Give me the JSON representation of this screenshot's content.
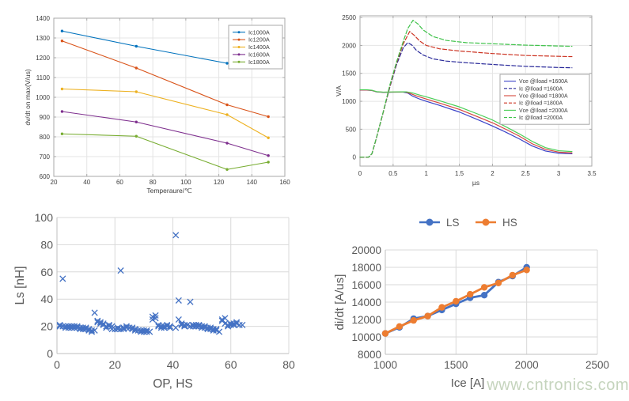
{
  "watermark": {
    "text": "www.cntronics.com",
    "color": "#c5d4bd"
  },
  "chart_data": [
    {
      "id": "dvdt",
      "type": "line",
      "title": "",
      "xlabel": "Temperaure/℃",
      "ylabel": "dv/dt on max(V/us)",
      "xlim": [
        20,
        160
      ],
      "ylim": [
        600,
        1400
      ],
      "xticks": [
        20,
        40,
        60,
        80,
        100,
        120,
        140,
        160
      ],
      "yticks": [
        600,
        700,
        800,
        900,
        1000,
        1100,
        1200,
        1300,
        1400
      ],
      "grid": true,
      "legend_position": "top-right-inside",
      "x": [
        25,
        70,
        125,
        150
      ],
      "series": [
        {
          "name": "Ic1000A",
          "color": "#0072BD",
          "values": [
            1335,
            1258,
            1172,
            1152
          ]
        },
        {
          "name": "Ic1200A",
          "color": "#D95319",
          "values": [
            1285,
            1148,
            962,
            902
          ]
        },
        {
          "name": "Ic1400A",
          "color": "#EDB120",
          "values": [
            1042,
            1028,
            912,
            795
          ]
        },
        {
          "name": "Ic1600A",
          "color": "#7E2F8E",
          "values": [
            928,
            875,
            768,
            705
          ]
        },
        {
          "name": "Ic1800A",
          "color": "#77AC30",
          "values": [
            815,
            803,
            635,
            672
          ]
        }
      ]
    },
    {
      "id": "switching",
      "type": "line",
      "title": "",
      "xlabel": "µs",
      "ylabel": "V/A",
      "xlim": [
        0,
        3.5
      ],
      "ylim": [
        0,
        2500
      ],
      "xticks": [
        0,
        0.5,
        1,
        1.5,
        2,
        2.5,
        3,
        3.5
      ],
      "yticks": [
        0,
        500,
        1000,
        1500,
        2000,
        2500
      ],
      "grid": true,
      "legend_position": "middle-right-inside",
      "series": [
        {
          "name": "Vce @Iload =1600A",
          "color": "#3a42c8",
          "dash": false,
          "points": [
            [
              0,
              1200
            ],
            [
              0.1,
              1200
            ],
            [
              0.18,
              1193
            ],
            [
              0.25,
              1168
            ],
            [
              0.35,
              1160
            ],
            [
              0.5,
              1163
            ],
            [
              0.65,
              1165
            ],
            [
              0.72,
              1148
            ],
            [
              0.8,
              1090
            ],
            [
              0.9,
              1040
            ],
            [
              1.0,
              1000
            ],
            [
              1.2,
              928
            ],
            [
              1.5,
              808
            ],
            [
              1.8,
              660
            ],
            [
              2.0,
              558
            ],
            [
              2.2,
              448
            ],
            [
              2.4,
              330
            ],
            [
              2.6,
              200
            ],
            [
              2.8,
              110
            ],
            [
              3.0,
              70
            ],
            [
              3.2,
              60
            ]
          ]
        },
        {
          "name": "Ic @Iload =1600A",
          "color": "#2a2a9a",
          "dash": true,
          "points": [
            [
              0,
              0
            ],
            [
              0.13,
              0
            ],
            [
              0.18,
              60
            ],
            [
              0.25,
              350
            ],
            [
              0.35,
              800
            ],
            [
              0.45,
              1250
            ],
            [
              0.55,
              1650
            ],
            [
              0.65,
              1950
            ],
            [
              0.72,
              2050
            ],
            [
              0.78,
              2010
            ],
            [
              0.85,
              1915
            ],
            [
              0.95,
              1830
            ],
            [
              1.1,
              1760
            ],
            [
              1.3,
              1720
            ],
            [
              1.6,
              1690
            ],
            [
              2.0,
              1660
            ],
            [
              2.5,
              1625
            ],
            [
              3.0,
              1605
            ],
            [
              3.2,
              1600
            ]
          ]
        },
        {
          "name": "Vce @Iload =1800A",
          "color": "#d4473d",
          "dash": false,
          "points": [
            [
              0,
              1202
            ],
            [
              0.1,
              1202
            ],
            [
              0.18,
              1195
            ],
            [
              0.25,
              1170
            ],
            [
              0.35,
              1162
            ],
            [
              0.5,
              1165
            ],
            [
              0.68,
              1168
            ],
            [
              0.76,
              1140
            ],
            [
              0.85,
              1098
            ],
            [
              1.0,
              1040
            ],
            [
              1.2,
              968
            ],
            [
              1.5,
              855
            ],
            [
              1.8,
              712
            ],
            [
              2.0,
              615
            ],
            [
              2.2,
              500
            ],
            [
              2.4,
              380
            ],
            [
              2.6,
              240
            ],
            [
              2.8,
              140
            ],
            [
              3.0,
              90
            ],
            [
              3.2,
              75
            ]
          ]
        },
        {
          "name": "Ic @Iload =1800A",
          "color": "#cc3322",
          "dash": true,
          "points": [
            [
              0,
              0
            ],
            [
              0.13,
              0
            ],
            [
              0.18,
              60
            ],
            [
              0.25,
              352
            ],
            [
              0.35,
              802
            ],
            [
              0.45,
              1268
            ],
            [
              0.55,
              1680
            ],
            [
              0.65,
              2020
            ],
            [
              0.75,
              2250
            ],
            [
              0.82,
              2180
            ],
            [
              0.9,
              2080
            ],
            [
              1.0,
              2000
            ],
            [
              1.2,
              1940
            ],
            [
              1.5,
              1900
            ],
            [
              2.0,
              1855
            ],
            [
              2.5,
              1820
            ],
            [
              3.0,
              1805
            ],
            [
              3.2,
              1800
            ]
          ]
        },
        {
          "name": "Vce @Iload =2000A",
          "color": "#4ace56",
          "dash": false,
          "points": [
            [
              0,
              1207
            ],
            [
              0.1,
              1207
            ],
            [
              0.18,
              1198
            ],
            [
              0.25,
              1173
            ],
            [
              0.35,
              1165
            ],
            [
              0.5,
              1168
            ],
            [
              0.7,
              1170
            ],
            [
              0.79,
              1150
            ],
            [
              0.9,
              1112
            ],
            [
              1.0,
              1080
            ],
            [
              1.2,
              1010
            ],
            [
              1.5,
              900
            ],
            [
              1.8,
              762
            ],
            [
              2.0,
              665
            ],
            [
              2.2,
              545
            ],
            [
              2.4,
              420
            ],
            [
              2.6,
              282
            ],
            [
              2.8,
              170
            ],
            [
              3.0,
              115
            ],
            [
              3.2,
              100
            ]
          ]
        },
        {
          "name": "Ic @Iload =2000A",
          "color": "#3fc24a",
          "dash": true,
          "points": [
            [
              0,
              0
            ],
            [
              0.13,
              0
            ],
            [
              0.18,
              62
            ],
            [
              0.25,
              355
            ],
            [
              0.35,
              808
            ],
            [
              0.45,
              1288
            ],
            [
              0.55,
              1700
            ],
            [
              0.65,
              2060
            ],
            [
              0.72,
              2300
            ],
            [
              0.8,
              2450
            ],
            [
              0.88,
              2380
            ],
            [
              0.95,
              2280
            ],
            [
              1.1,
              2160
            ],
            [
              1.3,
              2090
            ],
            [
              1.6,
              2050
            ],
            [
              2.0,
              2030
            ],
            [
              2.5,
              2005
            ],
            [
              3.0,
              1990
            ],
            [
              3.2,
              1985
            ]
          ]
        }
      ]
    },
    {
      "id": "ls-scatter",
      "type": "scatter",
      "title": "",
      "xlabel": "OP, HS",
      "ylabel": "Ls [nH]",
      "xlim": [
        0,
        80
      ],
      "ylim": [
        0,
        100
      ],
      "xticks": [
        0,
        20,
        40,
        60,
        80
      ],
      "yticks": [
        0,
        20,
        40,
        60,
        80,
        100
      ],
      "grid": true,
      "marker": "x",
      "color": "#4472C4",
      "points": [
        [
          1,
          20
        ],
        [
          1,
          21
        ],
        [
          2,
          55
        ],
        [
          2,
          20
        ],
        [
          3,
          20
        ],
        [
          3,
          19
        ],
        [
          4,
          20
        ],
        [
          4,
          19
        ],
        [
          5,
          20
        ],
        [
          5,
          19
        ],
        [
          6,
          20
        ],
        [
          6,
          19
        ],
        [
          7,
          19
        ],
        [
          7,
          20
        ],
        [
          8,
          19
        ],
        [
          8,
          18
        ],
        [
          9,
          18
        ],
        [
          9,
          19
        ],
        [
          10,
          18
        ],
        [
          10,
          19
        ],
        [
          11,
          17
        ],
        [
          11,
          18
        ],
        [
          12,
          16
        ],
        [
          12,
          17
        ],
        [
          13,
          30
        ],
        [
          13,
          17
        ],
        [
          14,
          24
        ],
        [
          14,
          23
        ],
        [
          15,
          22
        ],
        [
          15,
          23
        ],
        [
          16,
          22
        ],
        [
          16,
          21
        ],
        [
          17,
          20
        ],
        [
          17,
          19
        ],
        [
          18,
          21
        ],
        [
          18,
          20
        ],
        [
          19,
          20
        ],
        [
          19,
          18
        ],
        [
          20,
          18
        ],
        [
          21,
          18
        ],
        [
          21,
          19
        ],
        [
          22,
          61
        ],
        [
          22,
          18
        ],
        [
          23,
          19
        ],
        [
          23,
          18
        ],
        [
          24,
          19
        ],
        [
          24,
          20
        ],
        [
          25,
          19
        ],
        [
          26,
          19
        ],
        [
          26,
          18
        ],
        [
          27,
          18
        ],
        [
          27,
          17
        ],
        [
          28,
          17
        ],
        [
          29,
          17
        ],
        [
          29,
          16
        ],
        [
          30,
          17
        ],
        [
          30,
          16
        ],
        [
          31,
          16
        ],
        [
          31,
          17
        ],
        [
          32,
          16
        ],
        [
          33,
          27
        ],
        [
          33,
          25
        ],
        [
          34,
          28
        ],
        [
          34,
          26
        ],
        [
          35,
          21
        ],
        [
          35,
          20
        ],
        [
          36,
          19
        ],
        [
          36,
          20
        ],
        [
          37,
          19
        ],
        [
          37,
          20
        ],
        [
          38,
          21
        ],
        [
          38,
          20
        ],
        [
          39,
          19
        ],
        [
          39,
          20
        ],
        [
          41,
          87
        ],
        [
          41,
          19
        ],
        [
          42,
          39
        ],
        [
          42,
          25
        ],
        [
          43,
          21
        ],
        [
          43,
          22
        ],
        [
          44,
          21
        ],
        [
          44,
          20
        ],
        [
          45,
          21
        ],
        [
          46,
          38
        ],
        [
          46,
          20
        ],
        [
          47,
          20
        ],
        [
          47,
          21
        ],
        [
          48,
          20
        ],
        [
          48,
          21
        ],
        [
          49,
          20
        ],
        [
          49,
          21
        ],
        [
          50,
          20
        ],
        [
          50,
          19
        ],
        [
          51,
          19
        ],
        [
          51,
          20
        ],
        [
          52,
          19
        ],
        [
          52,
          18
        ],
        [
          53,
          18
        ],
        [
          53,
          19
        ],
        [
          54,
          17
        ],
        [
          54,
          18
        ],
        [
          55,
          18
        ],
        [
          55,
          17
        ],
        [
          56,
          16
        ],
        [
          57,
          25
        ],
        [
          57,
          24
        ],
        [
          58,
          26
        ],
        [
          58,
          22
        ],
        [
          59,
          21
        ],
        [
          59,
          20
        ],
        [
          60,
          21
        ],
        [
          60,
          22
        ],
        [
          61,
          21
        ],
        [
          61,
          22
        ],
        [
          62,
          22
        ],
        [
          62,
          23
        ],
        [
          63,
          21
        ],
        [
          64,
          21
        ]
      ]
    },
    {
      "id": "didt",
      "type": "line",
      "title": "",
      "xlabel": "Ice [A]",
      "ylabel": "di/dt [A/us]",
      "xlim": [
        1000,
        2500
      ],
      "ylim": [
        8000,
        20000
      ],
      "xticks": [
        1000,
        1500,
        2000,
        2500
      ],
      "yticks": [
        8000,
        10000,
        12000,
        14000,
        16000,
        18000,
        20000
      ],
      "grid": true,
      "legend_position": "top-center-outside",
      "x": [
        1000,
        1100,
        1200,
        1300,
        1400,
        1500,
        1600,
        1700,
        1800,
        1900,
        2000
      ],
      "series": [
        {
          "name": "LS",
          "color": "#4472C4",
          "marker": "circle",
          "values": [
            10400,
            11100,
            12100,
            12400,
            13100,
            13800,
            14500,
            14800,
            16300,
            17000,
            18000
          ]
        },
        {
          "name": "HS",
          "color": "#ED7D31",
          "marker": "circle",
          "values": [
            10400,
            11200,
            11900,
            12400,
            13400,
            14100,
            14900,
            15700,
            16200,
            17100,
            17700
          ]
        }
      ]
    }
  ]
}
